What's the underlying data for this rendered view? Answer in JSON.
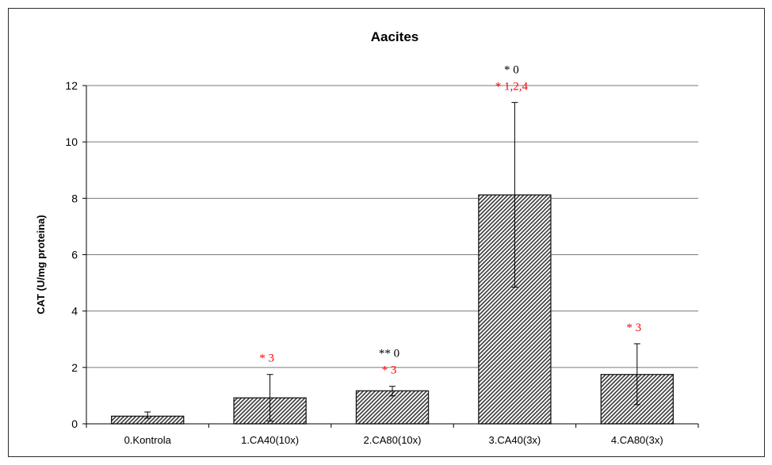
{
  "chart_data": {
    "type": "bar",
    "title": "Aacites",
    "xlabel": "",
    "ylabel": "CAT (U/mg proteina)",
    "ylim": [
      0,
      12
    ],
    "yticks": [
      "0",
      "2",
      "4",
      "6",
      "8",
      "10",
      "12"
    ],
    "grid": true,
    "legend": "none",
    "categories": [
      "0.Kontrola",
      "1.CA40(10x)",
      "2.CA80(10x)",
      "3.CA40(3x)",
      "4.CA80(3x)"
    ],
    "values": [
      0.27,
      0.92,
      1.17,
      8.12,
      1.75
    ],
    "error_low": [
      0.2,
      0.1,
      0.99,
      4.85,
      0.68
    ],
    "error_high": [
      0.42,
      1.75,
      1.33,
      11.4,
      2.84
    ],
    "annotations": [
      {
        "category": 1,
        "lines": [
          {
            "text": "* 3",
            "color": "#ff0000"
          }
        ]
      },
      {
        "category": 2,
        "lines": [
          {
            "text": "** 0",
            "color": "#000000"
          },
          {
            "text": "* 3",
            "color": "#ff0000"
          }
        ]
      },
      {
        "category": 3,
        "lines": [
          {
            "text": "* 0",
            "color": "#000000"
          },
          {
            "text": "* 1,2,4",
            "color": "#ff0000"
          }
        ]
      },
      {
        "category": 4,
        "lines": [
          {
            "text": "* 3",
            "color": "#ff0000"
          }
        ]
      }
    ],
    "bar_pattern": "diagonal-hatch",
    "bar_color": "#3a3a3a"
  }
}
